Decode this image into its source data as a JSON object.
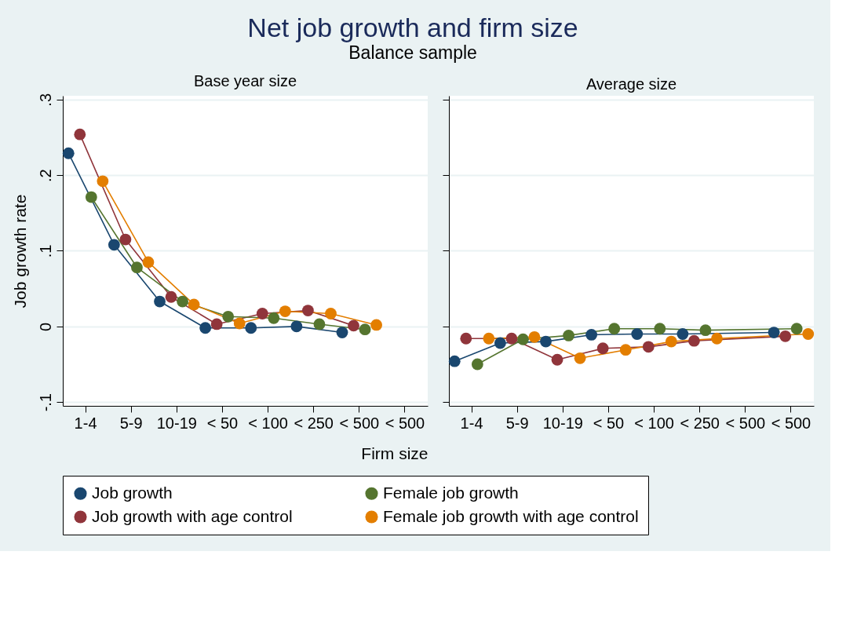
{
  "chart_data": [
    {
      "type": "line",
      "title": "Base year size",
      "xlabel": "Firm size",
      "ylabel": "Job growth rate",
      "annotations": [
        "Net job growth and firm size",
        "Balance sample"
      ],
      "categories": [
        "1-4",
        "5-9",
        "10-19",
        "< 50",
        "< 100",
        "< 250",
        "< 500",
        "< 500"
      ],
      "ylim": [
        -0.105,
        0.305
      ],
      "yticks": [
        {
          "value": -0.1,
          "label": "-.1"
        },
        0,
        {
          "value": 0.1,
          "label": ".1"
        },
        {
          "value": 0.2,
          "label": ".2"
        },
        {
          "value": 0.3,
          "label": ".3"
        }
      ],
      "grid": "y",
      "legend": "bottom",
      "marker": "circle",
      "series": [
        {
          "name": "Job growth",
          "color": "#1a476f",
          "values": [
            0.229,
            0.108,
            0.033,
            -0.002,
            -0.002,
            0.0,
            -0.008,
            null
          ]
        },
        {
          "name": "Job growth with age control",
          "color": "#90353b",
          "values": [
            0.254,
            0.115,
            0.039,
            0.003,
            0.017,
            0.021,
            0.001,
            null
          ]
        },
        {
          "name": "Female job growth",
          "color": "#55752f",
          "values": [
            0.171,
            0.078,
            0.033,
            0.013,
            0.011,
            0.003,
            -0.004,
            null
          ]
        },
        {
          "name": "Female job growth with age control",
          "color": "#e37e00",
          "values": [
            0.192,
            0.085,
            0.029,
            0.004,
            0.02,
            0.017,
            0.002,
            null
          ]
        }
      ]
    },
    {
      "type": "line",
      "title": "Average size",
      "categories": [
        "1-4",
        "5-9",
        "10-19",
        "< 50",
        "< 100",
        "< 250",
        "< 500",
        "< 500"
      ],
      "ylim": [
        -0.105,
        0.305
      ],
      "tick_labels": "x",
      "grid": "y",
      "marker": "circle",
      "series": [
        {
          "name": "Job growth",
          "color": "#1a476f",
          "values": [
            -0.046,
            -0.022,
            -0.02,
            -0.011,
            -0.01,
            -0.01,
            null,
            -0.008
          ]
        },
        {
          "name": "Job growth with age control",
          "color": "#90353b",
          "values": [
            -0.016,
            -0.016,
            -0.044,
            -0.029,
            -0.027,
            -0.019,
            null,
            -0.013
          ]
        },
        {
          "name": "Female job growth",
          "color": "#55752f",
          "values": [
            -0.05,
            -0.017,
            -0.012,
            -0.003,
            -0.003,
            -0.005,
            null,
            -0.003
          ]
        },
        {
          "name": "Female job growth with age control",
          "color": "#e37e00",
          "values": [
            -0.016,
            -0.014,
            -0.042,
            -0.031,
            -0.02,
            -0.016,
            null,
            -0.01
          ]
        }
      ]
    }
  ]
}
